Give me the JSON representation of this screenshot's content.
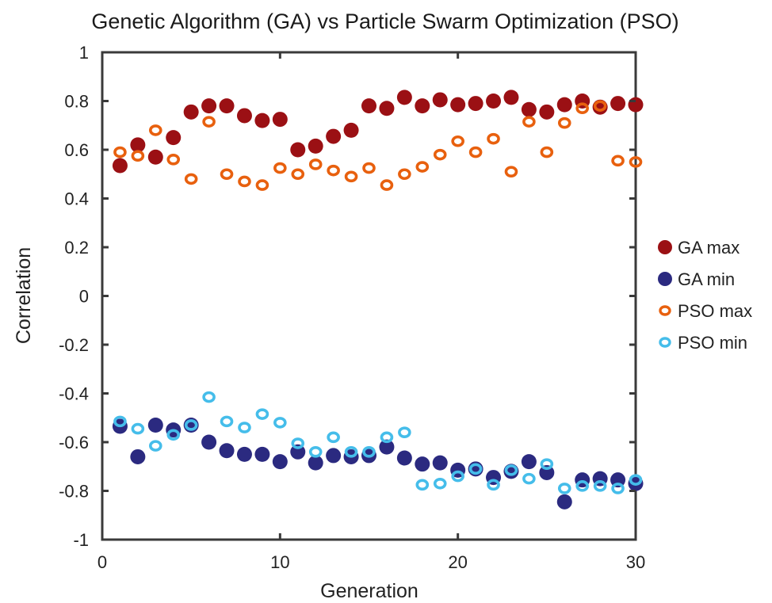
{
  "chart_data": {
    "type": "scatter",
    "title": "Genetic Algorithm (GA) vs Particle Swarm Optimization (PSO)",
    "xlabel": "Generation",
    "ylabel": "Correlation",
    "xlim": [
      0,
      30
    ],
    "ylim": [
      -1,
      1
    ],
    "xticks": [
      0,
      10,
      20,
      30
    ],
    "xtick_labels": [
      "0",
      "10",
      "20",
      "30"
    ],
    "yticks": [
      1,
      0.8,
      0.6,
      0.4,
      0.2,
      0,
      -0.2,
      -0.4,
      -0.6,
      -0.8,
      -1
    ],
    "ytick_labels": [
      "1",
      "0.8",
      "0.6",
      "0.4",
      "0.2",
      "0",
      "-0.2",
      "-0.4",
      "-0.6",
      "-0.8",
      "-1"
    ],
    "grid": false,
    "legend_position": "right",
    "x": [
      1,
      2,
      3,
      4,
      5,
      6,
      7,
      8,
      9,
      10,
      11,
      12,
      13,
      14,
      15,
      16,
      17,
      18,
      19,
      20,
      21,
      22,
      23,
      24,
      25,
      26,
      27,
      28,
      29,
      30
    ],
    "series": [
      {
        "name": "GA max",
        "marker": "filled",
        "color": "#9b1014",
        "values": [
          0.535,
          0.62,
          0.57,
          0.65,
          0.755,
          0.78,
          0.78,
          0.74,
          0.72,
          0.725,
          0.6,
          0.615,
          0.655,
          0.68,
          0.78,
          0.77,
          0.815,
          0.78,
          0.805,
          0.785,
          0.79,
          0.8,
          0.815,
          0.765,
          0.755,
          0.785,
          0.8,
          0.775,
          0.79,
          0.785
        ]
      },
      {
        "name": "GA min",
        "marker": "filled",
        "color": "#2b2a80",
        "values": [
          -0.535,
          -0.66,
          -0.53,
          -0.55,
          -0.53,
          -0.6,
          -0.635,
          -0.65,
          -0.65,
          -0.68,
          -0.64,
          -0.685,
          -0.655,
          -0.66,
          -0.655,
          -0.62,
          -0.665,
          -0.69,
          -0.685,
          -0.715,
          -0.71,
          -0.745,
          -0.72,
          -0.68,
          -0.725,
          -0.845,
          -0.755,
          -0.75,
          -0.755,
          -0.77
        ]
      },
      {
        "name": "PSO max",
        "marker": "ring",
        "color": "#e8600e",
        "values": [
          0.59,
          0.575,
          0.68,
          0.56,
          0.48,
          0.715,
          0.5,
          0.47,
          0.455,
          0.525,
          0.5,
          0.54,
          0.515,
          0.49,
          0.525,
          0.455,
          0.5,
          0.53,
          0.58,
          0.635,
          0.59,
          0.645,
          0.51,
          0.715,
          0.59,
          0.71,
          0.77,
          0.78,
          0.555,
          0.55
        ]
      },
      {
        "name": "PSO min",
        "marker": "ring",
        "color": "#45bdea",
        "values": [
          -0.515,
          -0.545,
          -0.615,
          -0.57,
          -0.53,
          -0.415,
          -0.515,
          -0.54,
          -0.485,
          -0.52,
          -0.605,
          -0.64,
          -0.58,
          -0.64,
          -0.64,
          -0.58,
          -0.56,
          -0.775,
          -0.77,
          -0.74,
          -0.71,
          -0.775,
          -0.715,
          -0.75,
          -0.69,
          -0.79,
          -0.78,
          -0.78,
          -0.79,
          -0.755
        ]
      }
    ],
    "axis_color": "#3a3a3a"
  }
}
